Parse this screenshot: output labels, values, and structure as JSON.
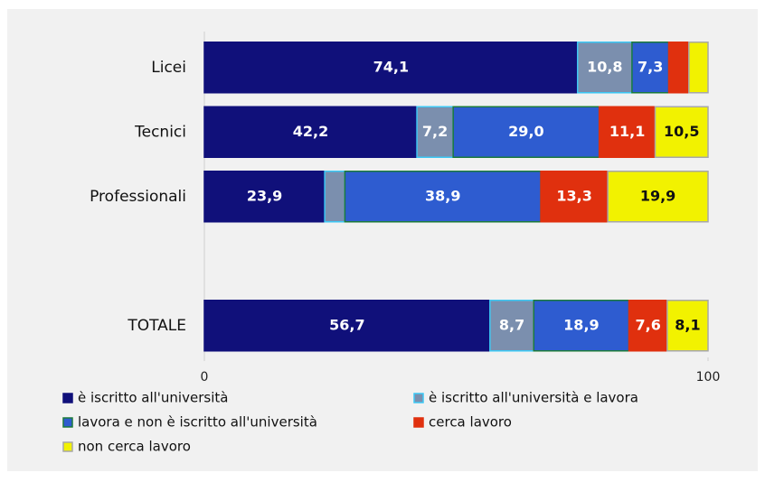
{
  "chart_data": {
    "type": "stacked-bar-horizontal",
    "categories": [
      "Licei",
      "Tecnici",
      "Professionali",
      null,
      "TOTALE"
    ],
    "series": [
      {
        "name": "è iscritto all'università",
        "color": "#10107a",
        "border": "#10107a",
        "values": [
          74.1,
          42.2,
          23.9,
          null,
          56.7
        ],
        "value_labels": [
          "74,1",
          "42,2",
          "23,9",
          null,
          "56,7"
        ]
      },
      {
        "name": "è iscritto all'università e lavora",
        "color": "#7b8fae",
        "border": "#3cc8f5",
        "values": [
          10.8,
          7.2,
          4.0,
          null,
          8.7
        ],
        "value_labels": [
          "10,8",
          "7,2",
          null,
          null,
          "8,7"
        ]
      },
      {
        "name": "lavora e non è iscritto all'università",
        "color": "#2e5cd0",
        "border": "#1c7a3c",
        "values": [
          7.3,
          29.0,
          38.9,
          null,
          18.9
        ],
        "value_labels": [
          "7,3",
          "29,0",
          "38,9",
          null,
          "18,9"
        ]
      },
      {
        "name": "cerca lavoro",
        "color": "#e0300e",
        "border": "#e0300e",
        "values": [
          4.0,
          11.1,
          13.3,
          null,
          7.6
        ],
        "value_labels": [
          null,
          "11,1",
          "13,3",
          null,
          "7,6"
        ]
      },
      {
        "name": "non cerca lavoro",
        "color": "#f2f200",
        "border": "#a8a8a8",
        "values": [
          3.8,
          10.5,
          19.9,
          null,
          8.1
        ],
        "value_labels": [
          null,
          "10,5",
          "19,9",
          null,
          "8,1"
        ]
      }
    ],
    "xlim": [
      0,
      100
    ],
    "xticks": [
      0,
      100
    ],
    "legend": "bottom"
  }
}
